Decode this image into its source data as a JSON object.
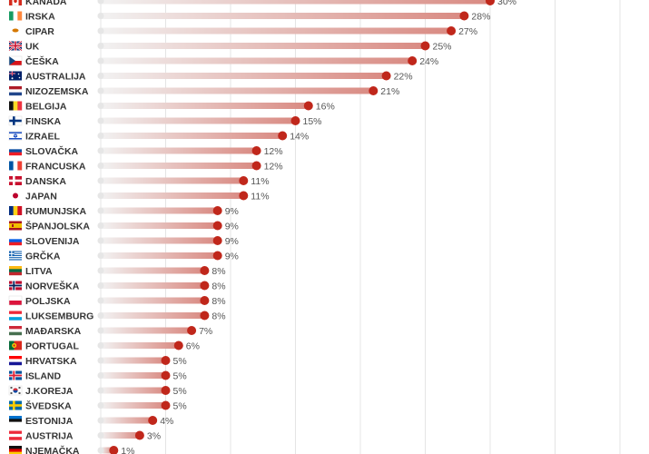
{
  "chart_data": {
    "type": "bar",
    "value_suffix": "%",
    "xlim": [
      0,
      40
    ],
    "grid": true,
    "colors": {
      "dot": "#c0271b",
      "bar_start": "#f2f2f2",
      "bar_end": "#d98a82",
      "track": "#eeeeee"
    },
    "categories": [
      "KANADA",
      "IRSKA",
      "CIPAR",
      "UK",
      "ČEŠKA",
      "AUSTRALIJA",
      "NIZOZEMSKA",
      "BELGIJA",
      "FINSKA",
      "IZRAEL",
      "SLOVAČKA",
      "FRANCUSKA",
      "DANSKA",
      "JAPAN",
      "RUMUNJSKA",
      "ŠPANJOLSKA",
      "SLOVENIJA",
      "GRČKA",
      "LITVA",
      "NORVEŠKA",
      "POLJSKA",
      "LUKSEMBURG",
      "MAĐARSKA",
      "PORTUGAL",
      "HRVATSKA",
      "ISLAND",
      "J.KOREJA",
      "ŠVEDSKA",
      "ESTONIJA",
      "AUSTRIJA",
      "NJEMAČKA"
    ],
    "values": [
      30,
      28,
      27,
      25,
      24,
      22,
      21,
      16,
      15,
      14,
      12,
      12,
      11,
      11,
      9,
      9,
      9,
      9,
      8,
      8,
      8,
      8,
      7,
      6,
      5,
      5,
      5,
      5,
      4,
      3,
      1
    ],
    "flags": [
      {
        "type": "leaf"
      },
      {
        "type": "v",
        "colors": [
          "#169b62",
          "#ffffff",
          "#ff883e"
        ]
      },
      {
        "type": "cyprus"
      },
      {
        "type": "uk"
      },
      {
        "type": "czech"
      },
      {
        "type": "aus"
      },
      {
        "type": "h",
        "colors": [
          "#ae1c28",
          "#ffffff",
          "#21468b"
        ]
      },
      {
        "type": "v",
        "colors": [
          "#111111",
          "#fdda24",
          "#ef3340"
        ]
      },
      {
        "type": "nordic",
        "colors": [
          "#ffffff",
          "#003580"
        ]
      },
      {
        "type": "israel"
      },
      {
        "type": "h",
        "colors": [
          "#ffffff",
          "#0b4ea2",
          "#ee1c25"
        ]
      },
      {
        "type": "v",
        "colors": [
          "#0055a4",
          "#ffffff",
          "#ef4135"
        ]
      },
      {
        "type": "nordic",
        "colors": [
          "#c8102e",
          "#ffffff"
        ]
      },
      {
        "type": "japan"
      },
      {
        "type": "v",
        "colors": [
          "#002b7f",
          "#fcd116",
          "#ce1126"
        ]
      },
      {
        "type": "spain"
      },
      {
        "type": "h",
        "colors": [
          "#ffffff",
          "#005ce5",
          "#ed1c24"
        ]
      },
      {
        "type": "greece"
      },
      {
        "type": "h",
        "colors": [
          "#fdb913",
          "#006a44",
          "#c1272d"
        ]
      },
      {
        "type": "nordic2"
      },
      {
        "type": "h2",
        "colors": [
          "#ffffff",
          "#dc143c"
        ]
      },
      {
        "type": "h",
        "colors": [
          "#ed2939",
          "#ffffff",
          "#00a1de"
        ]
      },
      {
        "type": "h",
        "colors": [
          "#ce2939",
          "#ffffff",
          "#477050"
        ]
      },
      {
        "type": "portugal"
      },
      {
        "type": "h",
        "colors": [
          "#ff0000",
          "#ffffff",
          "#171796"
        ]
      },
      {
        "type": "nordic2",
        "colors": [
          "#02529c",
          "#ffffff",
          "#dc1e35"
        ]
      },
      {
        "type": "korea"
      },
      {
        "type": "nordic",
        "colors": [
          "#006aa7",
          "#fecc00"
        ]
      },
      {
        "type": "h",
        "colors": [
          "#0072ce",
          "#111111",
          "#ffffff"
        ]
      },
      {
        "type": "h",
        "colors": [
          "#ed2939",
          "#ffffff",
          "#ed2939"
        ]
      },
      {
        "type": "h",
        "colors": [
          "#111111",
          "#dd0000",
          "#ffce00"
        ]
      }
    ]
  }
}
